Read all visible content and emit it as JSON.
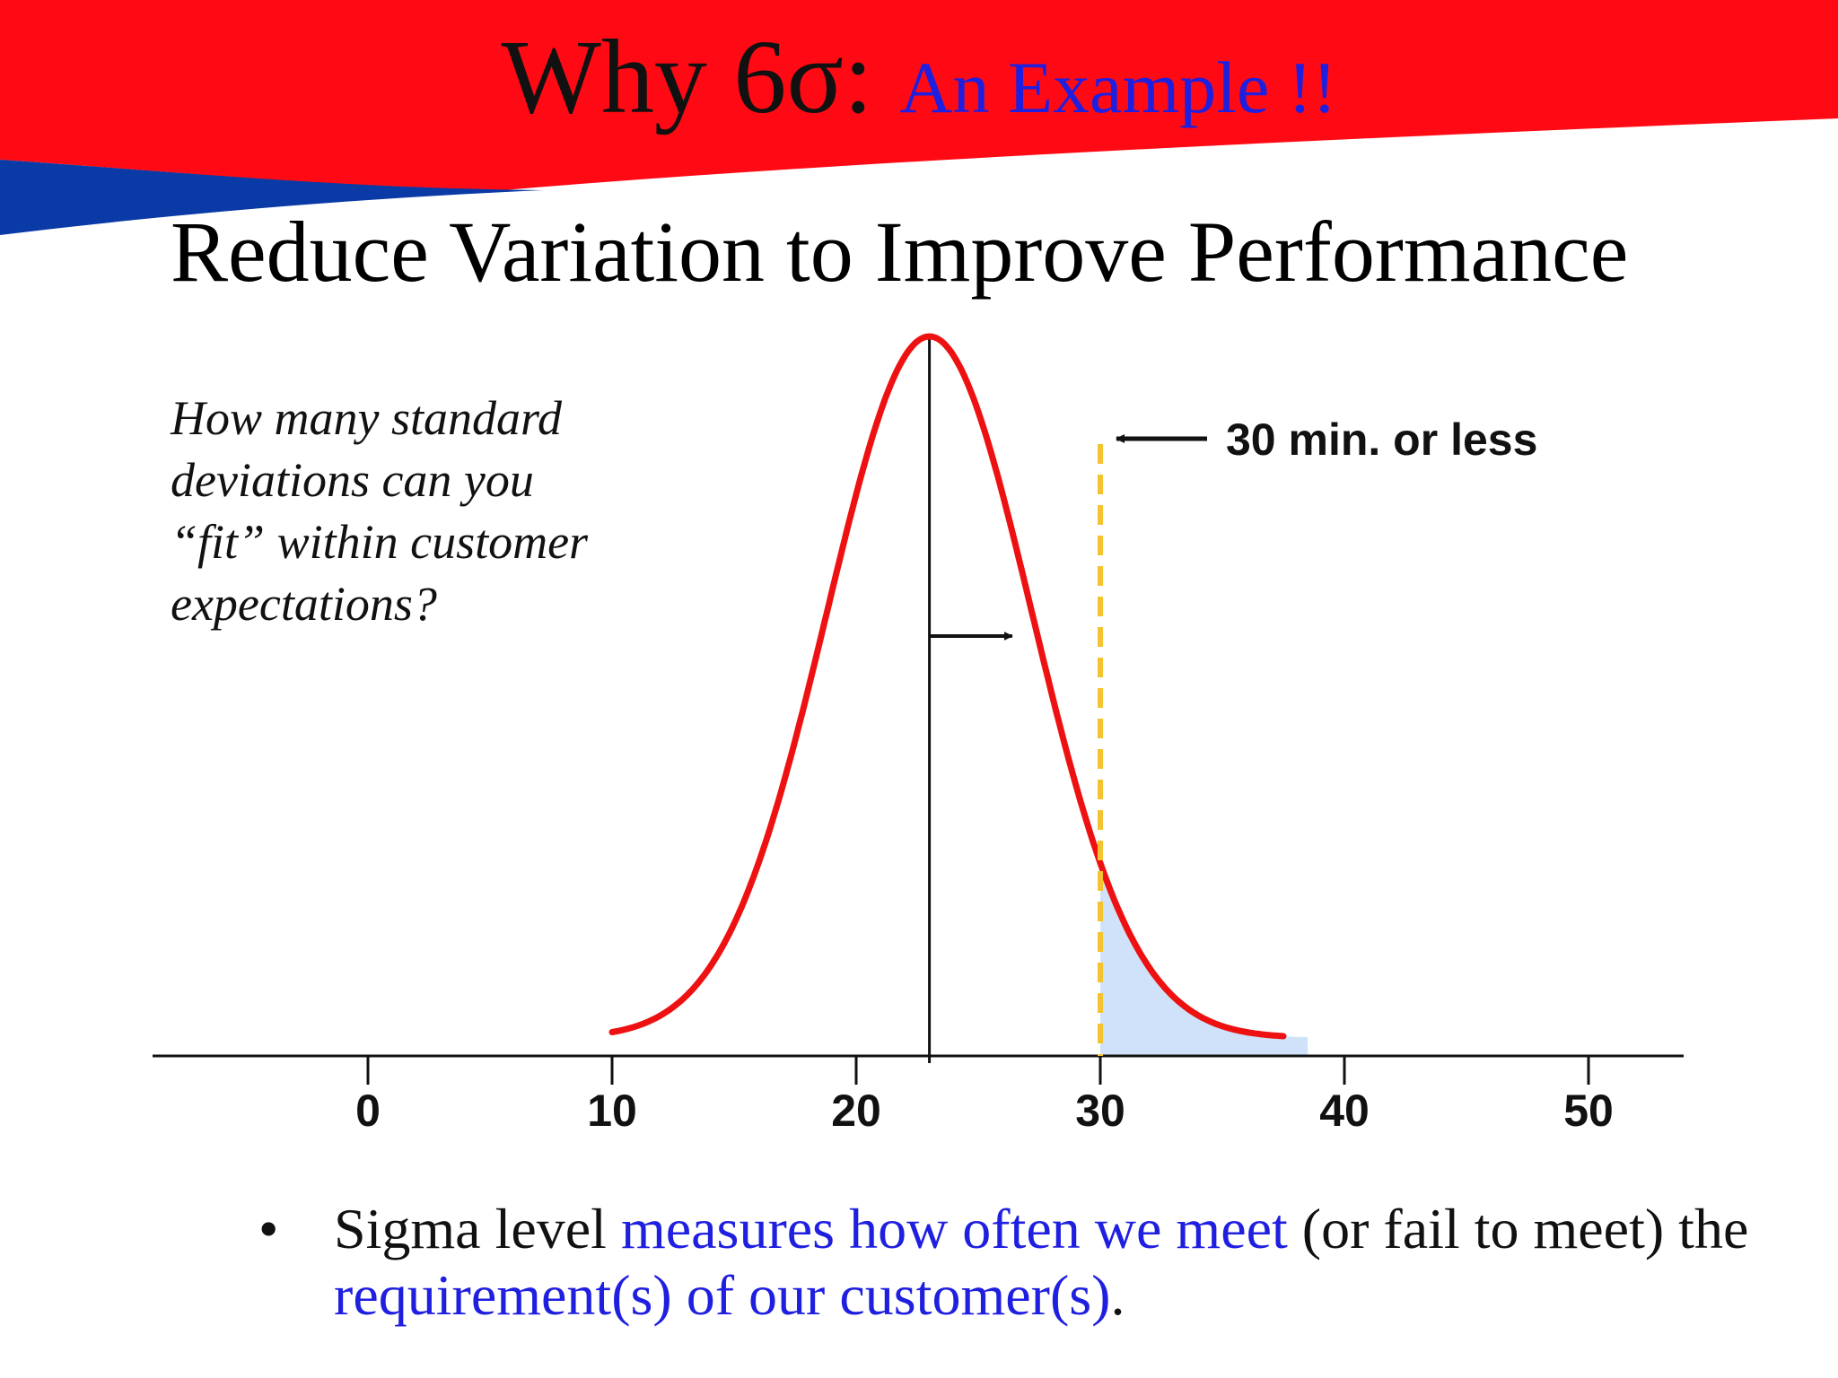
{
  "slide": {
    "title_main": "Why 6σ:",
    "title_accent": "An Example !!",
    "subtitle": "Reduce Variation to Improve Performance",
    "question_lines": [
      "How many standard",
      "deviations can you",
      "“fit” within customer",
      "expectations?"
    ],
    "bullet_symbol": "•",
    "bullet": {
      "part1": "Sigma level ",
      "part2": "measures how often we meet",
      "part3": " (or fail to meet) ",
      "part4": "the ",
      "part5": "requirement(s) of our customer(s)",
      "part6": "."
    }
  },
  "colors": {
    "banner_red": "#ff0a14",
    "banner_blue": "#0a3aa6",
    "accent_blue": "#1f1fe0",
    "curve_red": "#ee1111",
    "spec_line": "#f4c430",
    "tail_fill": "#cfe2fa",
    "axis": "#111111"
  },
  "chart_data": {
    "type": "line",
    "x_ticks": [
      0,
      10,
      20,
      30,
      40,
      50
    ],
    "xlim": [
      -9,
      54
    ],
    "mean": 23,
    "std_dev": 4.2,
    "curve_range": [
      10,
      37.5
    ],
    "tail_shaded_range": [
      30,
      38.5
    ],
    "spec_limit": 30,
    "spec_label": "30 min. or less",
    "sigma_arrow": "from mean to +1 standard deviation",
    "grid": false
  }
}
